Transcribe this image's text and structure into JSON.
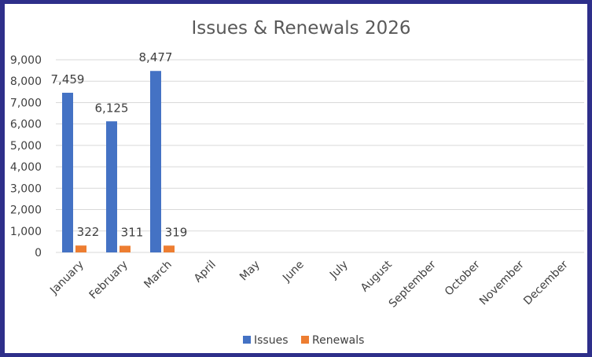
{
  "chart_data": {
    "type": "bar",
    "title": "Issues & Renewals 2026",
    "categories": [
      "January",
      "February",
      "March",
      "April",
      "May",
      "June",
      "July",
      "August",
      "September",
      "October",
      "November",
      "December"
    ],
    "series": [
      {
        "name": "Issues",
        "color": "#4472c4",
        "values": [
          7459,
          6125,
          8477,
          null,
          null,
          null,
          null,
          null,
          null,
          null,
          null,
          null
        ],
        "labels": [
          "7,459",
          "6,125",
          "8,477"
        ]
      },
      {
        "name": "Renewals",
        "color": "#ed7d31",
        "values": [
          322,
          311,
          319,
          null,
          null,
          null,
          null,
          null,
          null,
          null,
          null,
          null
        ],
        "labels": [
          "322",
          "311",
          "319"
        ]
      }
    ],
    "yticks": [
      "0",
      "1,000",
      "2,000",
      "3,000",
      "4,000",
      "5,000",
      "6,000",
      "7,000",
      "8,000",
      "9,000"
    ],
    "ylim": [
      0,
      9000
    ],
    "grid": true,
    "legend_position": "bottom"
  }
}
